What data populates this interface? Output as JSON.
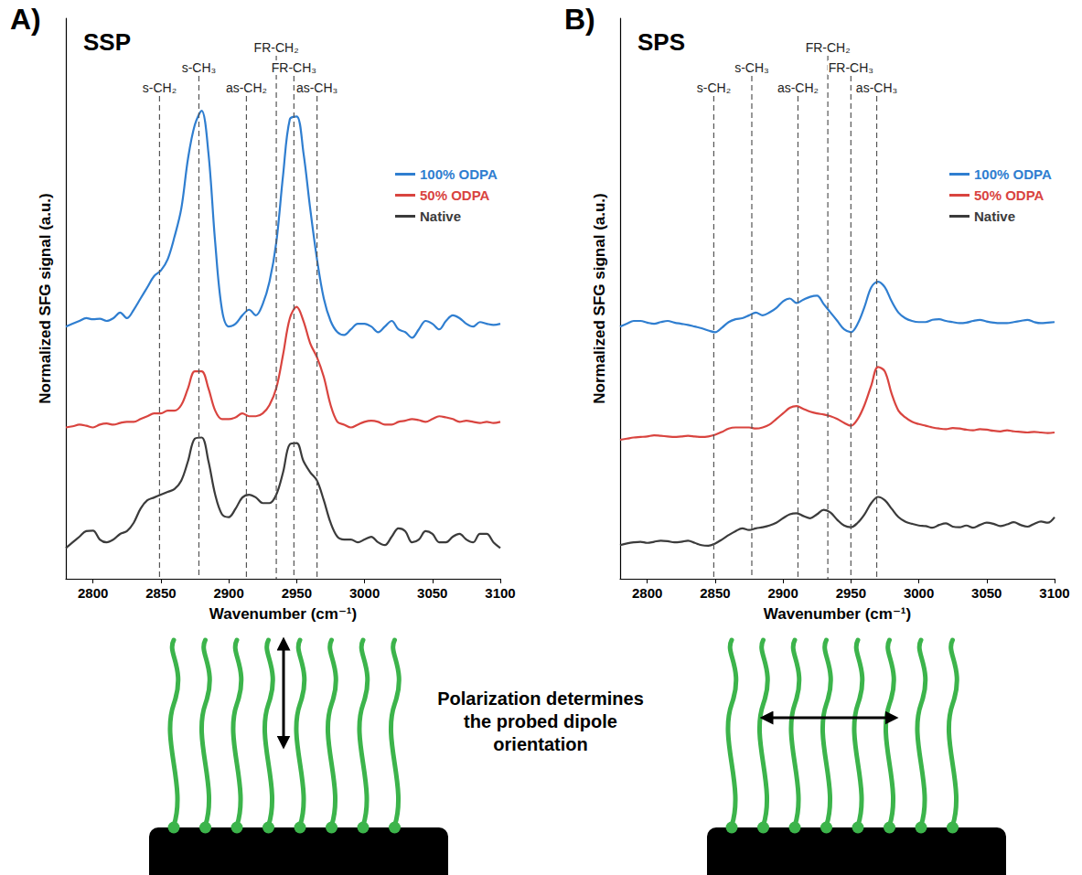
{
  "chart_data": [
    {
      "type": "line",
      "panel": "A)",
      "title": "SSP",
      "xlabel": "Wavenumber (cm⁻¹)",
      "ylabel": "Normalized SFG signal (a.u.)",
      "xlim": [
        2780,
        3100
      ],
      "xticks": [
        2800,
        2850,
        2900,
        2950,
        3000,
        3050,
        3100
      ],
      "ylim": [
        0,
        100
      ],
      "tick_labels": "x",
      "grid": false,
      "legend": "upper right",
      "x": [
        2780,
        2785,
        2790,
        2795,
        2800,
        2805,
        2810,
        2815,
        2820,
        2825,
        2830,
        2835,
        2840,
        2845,
        2850,
        2855,
        2860,
        2865,
        2870,
        2875,
        2880,
        2885,
        2890,
        2895,
        2900,
        2905,
        2910,
        2915,
        2920,
        2925,
        2930,
        2935,
        2940,
        2945,
        2950,
        2955,
        2960,
        2965,
        2970,
        2975,
        2980,
        2985,
        2990,
        2995,
        3000,
        3005,
        3010,
        3015,
        3020,
        3025,
        3030,
        3035,
        3040,
        3045,
        3050,
        3055,
        3060,
        3065,
        3070,
        3075,
        3080,
        3085,
        3090,
        3095,
        3100
      ],
      "series": [
        {
          "name": "100% ODPA",
          "color": "#2f7ed0",
          "values": [
            45,
            45.5,
            46,
            46.5,
            46.3,
            46.4,
            46,
            46.5,
            47.5,
            46.5,
            48,
            50,
            52,
            54,
            55,
            57,
            61,
            66,
            75,
            81,
            83.5,
            76,
            60,
            48,
            45,
            45.5,
            47,
            48,
            47,
            49,
            53,
            60,
            72,
            82,
            82.5,
            76,
            66,
            57,
            50,
            46,
            44,
            43.5,
            44.5,
            45.5,
            45.5,
            45,
            44,
            45,
            46,
            44.5,
            44,
            43,
            44.5,
            46,
            45.5,
            44.5,
            46,
            47,
            46.5,
            45.5,
            45,
            45.8,
            45.5,
            45.3,
            45.5
          ]
        },
        {
          "name": "50% ODPA",
          "color": "#d9443f",
          "values": [
            27,
            27.2,
            27.5,
            27.3,
            27,
            27.5,
            27.7,
            27.5,
            27.8,
            28,
            28,
            28.5,
            29,
            29.5,
            29.5,
            30,
            30,
            31,
            34,
            37,
            37,
            34,
            30,
            28.5,
            28.5,
            28.8,
            29.5,
            29,
            29,
            29.5,
            31,
            34,
            40,
            46.5,
            48.5,
            46,
            42,
            39.5,
            36,
            31,
            28,
            27.5,
            27,
            27.5,
            28,
            28.2,
            28,
            27.5,
            27.5,
            28,
            28.2,
            28.5,
            28.3,
            28,
            28.5,
            29,
            28.8,
            28.5,
            28,
            28.2,
            28,
            27.8,
            28,
            27.8,
            28
          ]
        },
        {
          "name": "Native",
          "color": "#3b3b3b",
          "values": [
            5.5,
            6.5,
            7.5,
            8.5,
            8.6,
            7,
            6.5,
            7,
            8,
            8.5,
            10,
            12.5,
            14,
            14.5,
            15,
            15.5,
            16,
            17.5,
            21,
            25,
            25.2,
            21,
            15,
            11.5,
            11,
            12.5,
            14.5,
            15,
            14.5,
            13.5,
            13.5,
            15,
            19,
            24,
            24.2,
            21,
            19,
            17.5,
            14,
            10,
            7.5,
            7,
            7,
            6.5,
            7,
            7.5,
            6.5,
            6,
            7.5,
            9,
            8.5,
            6.5,
            7,
            8.5,
            8,
            6.5,
            6.5,
            7.5,
            8,
            7,
            6.5,
            8,
            8,
            6.5,
            5.5
          ]
        }
      ],
      "annotations": [
        {
          "x": 2849,
          "label": "s-CH₂"
        },
        {
          "x": 2878,
          "label": "s-CH₃"
        },
        {
          "x": 2913,
          "label": "as-CH₂"
        },
        {
          "x": 2935,
          "label": "FR-CH₂"
        },
        {
          "x": 2948,
          "label": "FR-CH₃"
        },
        {
          "x": 2965,
          "label": "as-CH₃"
        }
      ]
    },
    {
      "type": "line",
      "panel": "B)",
      "title": "SPS",
      "xlabel": "Wavenumber (cm⁻¹)",
      "ylabel": "Normalized SFG signal (a.u.)",
      "xlim": [
        2780,
        3100
      ],
      "xticks": [
        2800,
        2850,
        2900,
        2950,
        3000,
        3050,
        3100
      ],
      "ylim": [
        0,
        100
      ],
      "tick_labels": "x",
      "grid": false,
      "legend": "upper right",
      "x": [
        2780,
        2785,
        2790,
        2795,
        2800,
        2805,
        2810,
        2815,
        2820,
        2825,
        2830,
        2835,
        2840,
        2845,
        2850,
        2855,
        2860,
        2865,
        2870,
        2875,
        2880,
        2885,
        2890,
        2895,
        2900,
        2905,
        2910,
        2915,
        2920,
        2925,
        2930,
        2935,
        2940,
        2945,
        2950,
        2955,
        2960,
        2965,
        2970,
        2975,
        2980,
        2985,
        2990,
        2995,
        3000,
        3005,
        3010,
        3015,
        3020,
        3025,
        3030,
        3035,
        3040,
        3045,
        3050,
        3055,
        3060,
        3065,
        3070,
        3075,
        3080,
        3085,
        3090,
        3095,
        3100
      ],
      "series": [
        {
          "name": "100% ODPA",
          "color": "#2f7ed0",
          "values": [
            45,
            45.5,
            46,
            46,
            45.7,
            45.5,
            45.8,
            46,
            45.7,
            45.5,
            45.3,
            45,
            44.7,
            44.3,
            44,
            44.8,
            45.8,
            46.3,
            46.5,
            47,
            47.5,
            47,
            47.5,
            48.3,
            49.5,
            50,
            49.2,
            49.8,
            50.3,
            50.5,
            49,
            47.5,
            46,
            44.5,
            44,
            45.5,
            48.5,
            52,
            53,
            52,
            49.5,
            47.5,
            46.5,
            46,
            45.8,
            45.8,
            46.2,
            46.3,
            46,
            45.8,
            45.6,
            45.7,
            46,
            46.2,
            45.9,
            45.7,
            45.6,
            45.6,
            45.8,
            46,
            46.2,
            45.8,
            45.6,
            45.7,
            45.8
          ]
        },
        {
          "name": "50% ODPA",
          "color": "#d9443f",
          "values": [
            24.8,
            25,
            25.2,
            25.3,
            25.4,
            25.6,
            25.5,
            25.4,
            25.3,
            25.4,
            25.5,
            25.4,
            25.3,
            25.4,
            25.7,
            26.2,
            26.8,
            27,
            27,
            27,
            26.8,
            27,
            27.5,
            28.5,
            29.5,
            30.5,
            30.8,
            30.3,
            29.8,
            29.5,
            29.3,
            29,
            28.5,
            27.8,
            27.3,
            28.5,
            31,
            34.5,
            37.8,
            37,
            33,
            30,
            28.8,
            28,
            27.6,
            27.3,
            27,
            26.8,
            26.7,
            26.9,
            26.8,
            26.6,
            26.5,
            26.7,
            26.6,
            26.4,
            26.3,
            26.5,
            26.3,
            26.2,
            26.1,
            26.2,
            26.1,
            26,
            26.1
          ]
        },
        {
          "name": "Native",
          "color": "#3b3b3b",
          "values": [
            6,
            6.3,
            6.5,
            6.6,
            6.4,
            6.6,
            6.8,
            6.7,
            6.5,
            6.6,
            6.8,
            6.4,
            6,
            5.9,
            6.3,
            7,
            7.8,
            8.5,
            9,
            8.7,
            9,
            9.2,
            9.5,
            10,
            10.8,
            11.5,
            11.7,
            11.2,
            10.8,
            11.5,
            12.3,
            11.8,
            10.5,
            9.5,
            9.2,
            10,
            11.5,
            13.5,
            14.6,
            14,
            12.5,
            11,
            10.2,
            9.8,
            9.5,
            9.4,
            9.1,
            9.6,
            9.9,
            9.3,
            9.2,
            9.5,
            9.1,
            9.6,
            10,
            9.8,
            9.4,
            9.7,
            10.1,
            9.6,
            9.3,
            9.8,
            10.2,
            10,
            11
          ]
        }
      ],
      "annotations": [
        {
          "x": 2849,
          "label": "s-CH₂"
        },
        {
          "x": 2877,
          "label": "s-CH₃"
        },
        {
          "x": 2911,
          "label": "as-CH₂"
        },
        {
          "x": 2933,
          "label": "FR-CH₂"
        },
        {
          "x": 2950,
          "label": "FR-CH₃"
        },
        {
          "x": 2969,
          "label": "as-CH₃"
        }
      ]
    }
  ],
  "caption": "Polarization determines the probed dipole orientation"
}
